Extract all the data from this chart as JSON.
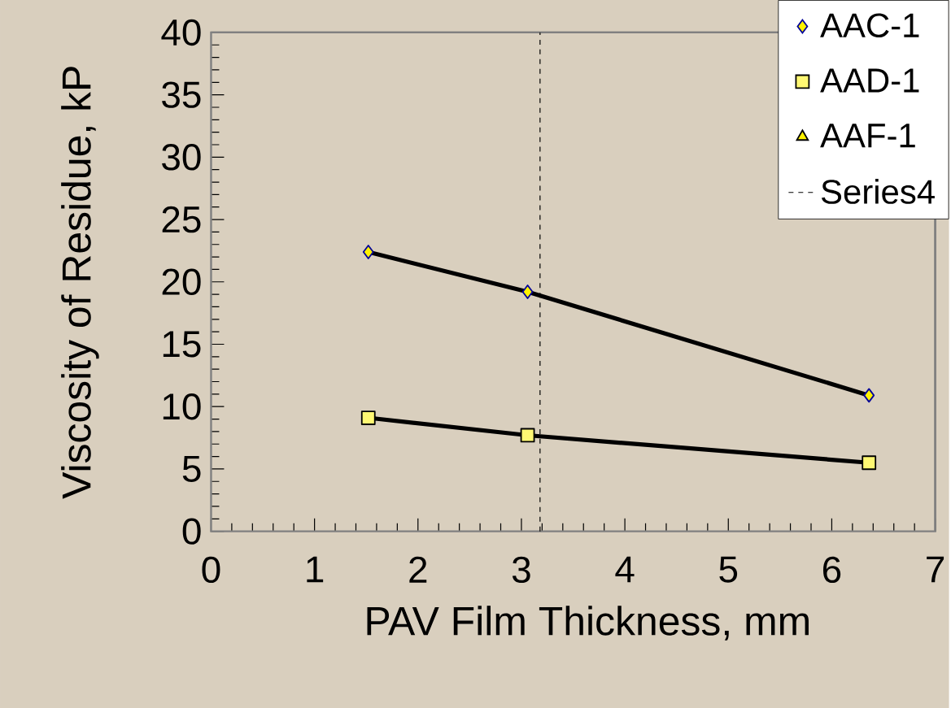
{
  "chart_data": {
    "type": "line",
    "xlabel": "PAV Film Thickness, mm",
    "ylabel": "Viscosity of Residue, kP",
    "xlim": [
      0,
      7
    ],
    "xticks": [
      0,
      1,
      2,
      3,
      4,
      5,
      6,
      7
    ],
    "ylim": [
      0,
      40
    ],
    "yticks": [
      0,
      5,
      10,
      15,
      20,
      25,
      30,
      35,
      40
    ],
    "legend": "top right",
    "grid": false,
    "series": [
      {
        "name": "AAC-1",
        "color": "#000000",
        "marker": "diamond",
        "x": [
          1.52,
          3.06,
          6.36
        ],
        "values": [
          22.4,
          19.2,
          10.9
        ]
      },
      {
        "name": "AAD-1",
        "color": "#000000",
        "marker": "square",
        "x": [
          1.52,
          3.06,
          6.36
        ],
        "values": [
          9.1,
          7.7,
          5.5
        ]
      },
      {
        "name": "AAF-1",
        "color": "#000000",
        "marker": "triangle"
      },
      {
        "name": "Series4",
        "color": "#000000",
        "marker": "none",
        "line_style": "dashed",
        "x": [
          3.18,
          3.18
        ],
        "values": [
          0,
          40
        ]
      }
    ]
  }
}
